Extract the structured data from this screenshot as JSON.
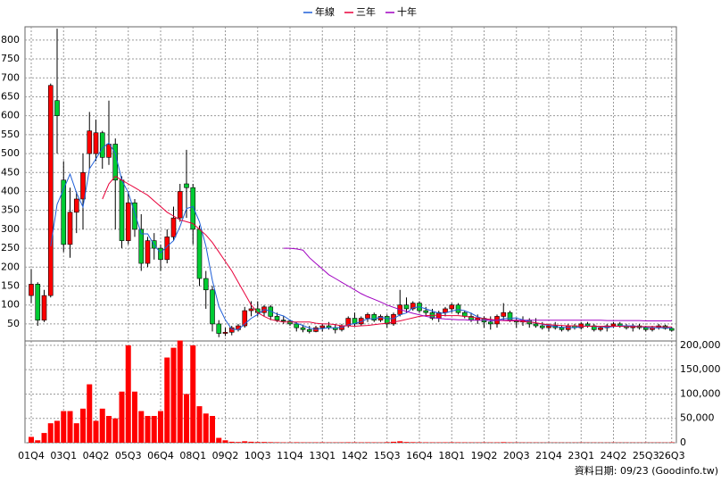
{
  "chart_data": {
    "type": "candlestick",
    "categories": [
      "01Q4",
      null,
      null,
      null,
      null,
      "03Q1",
      null,
      null,
      null,
      null,
      "04Q2",
      null,
      null,
      null,
      null,
      "05Q3",
      null,
      null,
      null,
      null,
      "06Q4",
      null,
      null,
      null,
      null,
      "08Q1",
      null,
      null,
      null,
      null,
      "09Q2",
      null,
      null,
      null,
      null,
      "10Q3",
      null,
      null,
      null,
      null,
      "11Q4",
      null,
      null,
      null,
      null,
      "13Q1",
      null,
      null,
      null,
      null,
      "14Q2",
      null,
      null,
      null,
      null,
      "15Q3",
      null,
      null,
      null,
      null,
      "16Q4",
      null,
      null,
      null,
      null,
      "18Q1",
      null,
      null,
      null,
      null,
      "19Q2",
      null,
      null,
      null,
      null,
      "20Q3",
      null,
      null,
      null,
      null,
      "21Q4",
      null,
      null,
      null,
      null,
      "23Q1",
      null,
      null,
      null,
      null,
      "24Q2",
      null,
      null,
      null,
      null,
      "25Q3",
      null,
      null,
      null,
      "26Q3"
    ],
    "open": [
      125,
      155,
      60,
      125,
      640,
      430,
      260,
      345,
      380,
      500,
      500,
      555,
      490,
      525,
      430,
      270,
      370,
      300,
      210,
      270,
      250,
      220,
      280,
      330,
      420,
      410,
      300,
      170,
      140,
      50,
      25,
      28,
      35,
      45,
      85,
      90,
      80,
      95,
      70,
      60,
      58,
      50,
      40,
      35,
      30,
      40,
      45,
      40,
      35,
      45,
      65,
      50,
      65,
      75,
      60,
      70,
      50,
      75,
      100,
      90,
      105,
      85,
      80,
      65,
      80,
      90,
      100,
      80,
      70,
      60,
      65,
      55,
      50,
      70,
      80,
      60,
      55,
      60,
      50,
      45,
      40,
      45,
      40,
      35,
      45,
      40,
      50,
      45,
      35,
      40,
      45,
      50,
      45,
      40,
      45,
      40,
      35,
      40,
      45,
      38
    ],
    "high": [
      195,
      160,
      140,
      685,
      830,
      480,
      410,
      400,
      500,
      610,
      590,
      560,
      640,
      540,
      440,
      400,
      380,
      340,
      280,
      290,
      260,
      300,
      360,
      420,
      510,
      420,
      310,
      190,
      150,
      60,
      40,
      45,
      50,
      95,
      110,
      110,
      100,
      100,
      80,
      70,
      62,
      55,
      48,
      45,
      45,
      50,
      55,
      50,
      50,
      70,
      80,
      70,
      80,
      80,
      75,
      75,
      80,
      140,
      120,
      110,
      110,
      95,
      90,
      85,
      95,
      105,
      105,
      85,
      80,
      75,
      70,
      70,
      75,
      105,
      85,
      65,
      70,
      65,
      65,
      55,
      50,
      55,
      45,
      50,
      50,
      55,
      55,
      50,
      45,
      50,
      55,
      55,
      50,
      50,
      50,
      45,
      45,
      50,
      48,
      42
    ],
    "low": [
      105,
      45,
      55,
      120,
      500,
      240,
      225,
      290,
      300,
      460,
      480,
      460,
      470,
      300,
      250,
      260,
      280,
      190,
      200,
      220,
      190,
      210,
      270,
      320,
      330,
      260,
      150,
      90,
      30,
      15,
      18,
      20,
      30,
      40,
      70,
      70,
      70,
      60,
      55,
      50,
      45,
      30,
      28,
      25,
      28,
      30,
      35,
      25,
      30,
      40,
      45,
      45,
      55,
      55,
      55,
      40,
      45,
      70,
      80,
      85,
      80,
      70,
      60,
      55,
      70,
      80,
      75,
      65,
      55,
      50,
      40,
      35,
      40,
      60,
      55,
      40,
      45,
      40,
      40,
      35,
      30,
      35,
      30,
      30,
      35,
      35,
      40,
      30,
      30,
      30,
      40,
      40,
      35,
      30,
      35,
      30,
      30,
      35,
      35,
      30
    ],
    "close": [
      155,
      60,
      125,
      680,
      600,
      260,
      345,
      380,
      450,
      560,
      555,
      490,
      525,
      430,
      270,
      370,
      300,
      210,
      270,
      250,
      220,
      280,
      330,
      400,
      410,
      300,
      170,
      140,
      50,
      25,
      28,
      40,
      45,
      85,
      90,
      80,
      95,
      70,
      60,
      58,
      50,
      40,
      35,
      30,
      40,
      45,
      40,
      35,
      45,
      65,
      50,
      65,
      75,
      60,
      70,
      50,
      75,
      100,
      90,
      105,
      85,
      80,
      65,
      80,
      90,
      100,
      80,
      70,
      60,
      65,
      55,
      50,
      70,
      80,
      60,
      55,
      60,
      50,
      45,
      40,
      45,
      40,
      35,
      45,
      40,
      50,
      45,
      35,
      40,
      45,
      50,
      45,
      40,
      45,
      40,
      35,
      40,
      45,
      38,
      33
    ],
    "up_color": "#ff0000",
    "down_color": "#00cc33",
    "ylim": [
      5,
      835
    ],
    "yticks": [
      50,
      100,
      150,
      200,
      250,
      300,
      350,
      400,
      450,
      500,
      550,
      600,
      650,
      700,
      750,
      800
    ],
    "volume": {
      "color": "#ff0000",
      "values": [
        12000,
        5000,
        20000,
        40000,
        45000,
        65000,
        65000,
        40000,
        70000,
        120000,
        45000,
        70000,
        55000,
        50000,
        105000,
        200000,
        105000,
        65000,
        55000,
        55000,
        65000,
        175000,
        195000,
        210000,
        100000,
        200000,
        75000,
        60000,
        55000,
        10000,
        5000,
        2000,
        1500,
        3000,
        2000,
        1500,
        1500,
        1200,
        1000,
        800,
        800,
        1000,
        800,
        700,
        800,
        900,
        700,
        700,
        800,
        1000,
        900,
        800,
        900,
        800,
        700,
        1200,
        2000,
        3000,
        1500,
        1200,
        1000,
        900,
        800,
        800,
        900,
        1000,
        900,
        800,
        700,
        700,
        800,
        700,
        800,
        1200,
        800,
        700,
        600,
        600,
        600,
        500,
        500,
        500,
        500,
        500,
        500,
        600,
        500,
        500,
        500,
        500,
        600,
        500,
        500,
        500,
        500,
        500,
        500,
        600,
        500,
        800
      ],
      "ylim": [
        0,
        209000
      ],
      "yticks": [
        0,
        {
          "value": 50000,
          "label": "50,000"
        },
        {
          "value": 100000,
          "label": "100,000"
        },
        {
          "value": 150000,
          "label": "150,000"
        },
        {
          "value": 200000,
          "label": "200,000"
        }
      ]
    },
    "lines": [
      {
        "name": "年線",
        "color": "#1f5fd8",
        "values": [
          null,
          null,
          null,
          255,
          366,
          406,
          446,
          396,
          359,
          460,
          486,
          515,
          528,
          500,
          430,
          397,
          343,
          288,
          288,
          258,
          238,
          255,
          270,
          308,
          355,
          360,
          320,
          255,
          165,
          96,
          61,
          36,
          35,
          50,
          65,
          75,
          88,
          84,
          76,
          71,
          60,
          52,
          46,
          39,
          36,
          38,
          40,
          40,
          41,
          48,
          51,
          56,
          64,
          63,
          68,
          64,
          64,
          74,
          79,
          93,
          95,
          90,
          84,
          78,
          79,
          84,
          88,
          85,
          78,
          69,
          63,
          58,
          60,
          64,
          65,
          66,
          61,
          56,
          53,
          49,
          46,
          43,
          41,
          41,
          40,
          43,
          45,
          43,
          43,
          41,
          43,
          45,
          45,
          45,
          43,
          41,
          40,
          40,
          40,
          39
        ]
      },
      {
        "name": "三年",
        "color": "#e8003a",
        "values": [
          null,
          null,
          null,
          null,
          null,
          null,
          null,
          null,
          null,
          null,
          null,
          380,
          420,
          440,
          430,
          420,
          410,
          400,
          390,
          375,
          360,
          345,
          335,
          325,
          320,
          315,
          300,
          285,
          265,
          240,
          215,
          190,
          160,
          130,
          100,
          80,
          70,
          62,
          58,
          55,
          55,
          55,
          55,
          55,
          52,
          50,
          50,
          48,
          45,
          45,
          44,
          45,
          46,
          48,
          50,
          52,
          55,
          58,
          62,
          66,
          70,
          72,
          73,
          73,
          72,
          72,
          72,
          70,
          68,
          66,
          64,
          62,
          60,
          59,
          58,
          58,
          56,
          55,
          53,
          50,
          48,
          47,
          46,
          45,
          45,
          44,
          44,
          44,
          44,
          44,
          44,
          44,
          43,
          43,
          43,
          43,
          43,
          43,
          42,
          42
        ]
      },
      {
        "name": "十年",
        "color": "#a000c0",
        "values": [
          null,
          null,
          null,
          null,
          null,
          null,
          null,
          null,
          null,
          null,
          null,
          null,
          null,
          null,
          null,
          null,
          null,
          null,
          null,
          null,
          null,
          null,
          null,
          null,
          null,
          null,
          null,
          null,
          null,
          null,
          null,
          null,
          null,
          null,
          null,
          null,
          null,
          null,
          null,
          250,
          250,
          248,
          245,
          225,
          210,
          195,
          180,
          170,
          160,
          150,
          140,
          130,
          122,
          115,
          108,
          100,
          94,
          88,
          83,
          78,
          74,
          70,
          67,
          65,
          63,
          62,
          61,
          61,
          60,
          60,
          60,
          60,
          60,
          60,
          60,
          60,
          60,
          60,
          60,
          60,
          60,
          60,
          60,
          60,
          60,
          60,
          60,
          60,
          60,
          59,
          59,
          59,
          59,
          59,
          59,
          58,
          58,
          58,
          58,
          58
        ]
      }
    ],
    "grid": true,
    "legend": "top",
    "source": "資料日期: 09/23 (Goodinfo.tw)"
  }
}
